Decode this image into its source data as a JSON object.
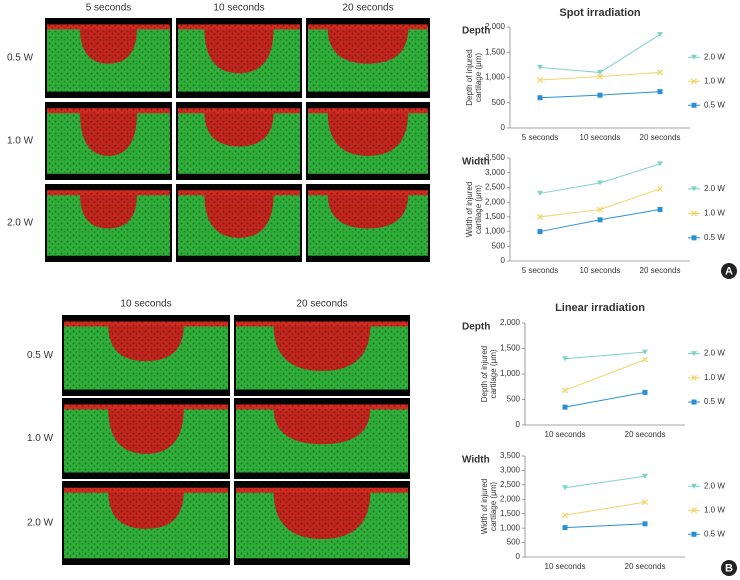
{
  "panels": [
    {
      "letter": "A",
      "title": "Spot irradiation",
      "columns": [
        "5 seconds",
        "10 seconds",
        "20 seconds"
      ],
      "rows": [
        "0.5 W",
        "1.0 W",
        "2.0 W"
      ]
    },
    {
      "letter": "B",
      "title": "Linear irradiation",
      "columns": [
        "10 seconds",
        "20 seconds"
      ],
      "rows": [
        "0.5 W",
        "1.0 W",
        "2.0 W"
      ]
    }
  ],
  "chart_data": [
    {
      "type": "line",
      "title": "Depth",
      "y_label": [
        "Depth of injured",
        "cartilage (μm)"
      ],
      "categories": [
        "5 seconds",
        "10 seconds",
        "20 seconds"
      ],
      "ylim": [
        0,
        2000
      ],
      "yticks": [
        0,
        500,
        {
          "value": 1000,
          "label": "1,000"
        },
        {
          "value": 1500,
          "label": "1,500"
        },
        {
          "value": 2000,
          "label": "2,000"
        }
      ],
      "series": [
        {
          "name": "2.0 W",
          "color": "#7fd3c6",
          "marker": "triangle-down",
          "values": [
            1200,
            1100,
            1850
          ]
        },
        {
          "name": "1.0 W",
          "color": "#f3d36a",
          "marker": "x",
          "values": [
            950,
            1020,
            1100
          ]
        },
        {
          "name": "0.5 W",
          "color": "#2b8fd6",
          "marker": "square",
          "values": [
            600,
            650,
            720
          ]
        }
      ]
    },
    {
      "type": "line",
      "title": "Width",
      "y_label": [
        "Width of injured",
        "cartilage (μm)"
      ],
      "categories": [
        "5 seconds",
        "10 seconds",
        "20 seconds"
      ],
      "ylim": [
        0,
        3500
      ],
      "yticks": [
        0,
        500,
        {
          "value": 1000,
          "label": "1,000"
        },
        {
          "value": 1500,
          "label": "1,500"
        },
        {
          "value": 2000,
          "label": "2,000"
        },
        {
          "value": 2500,
          "label": "2,500"
        },
        {
          "value": 3000,
          "label": "3,000"
        },
        {
          "value": 3500,
          "label": "3,500"
        }
      ],
      "series": [
        {
          "name": "2.0 W",
          "color": "#7fd3c6",
          "marker": "triangle-down",
          "values": [
            2300,
            2650,
            3300
          ]
        },
        {
          "name": "1.0 W",
          "color": "#f3d36a",
          "marker": "x",
          "values": [
            1500,
            1750,
            2450
          ]
        },
        {
          "name": "0.5 W",
          "color": "#2b8fd6",
          "marker": "square",
          "values": [
            1000,
            1400,
            1750
          ]
        }
      ]
    },
    {
      "type": "line",
      "title": "Depth",
      "y_label": [
        "Depth of injured",
        "cartilage (μm)"
      ],
      "categories": [
        "10 seconds",
        "20 seconds"
      ],
      "ylim": [
        0,
        2000
      ],
      "yticks": [
        0,
        500,
        {
          "value": 1000,
          "label": "1,000"
        },
        {
          "value": 1500,
          "label": "1,500"
        },
        {
          "value": 2000,
          "label": "2,000"
        }
      ],
      "series": [
        {
          "name": "2.0 W",
          "color": "#7fd3c6",
          "marker": "triangle-down",
          "values": [
            1300,
            1430
          ]
        },
        {
          "name": "1.0 W",
          "color": "#f3d36a",
          "marker": "x",
          "values": [
            680,
            1280
          ]
        },
        {
          "name": "0.5 W",
          "color": "#2b8fd6",
          "marker": "square",
          "values": [
            350,
            640
          ]
        }
      ]
    },
    {
      "type": "line",
      "title": "Width",
      "y_label": [
        "Width of injured",
        "cartilage (μm)"
      ],
      "categories": [
        "10 seconds",
        "20 seconds"
      ],
      "ylim": [
        0,
        3500
      ],
      "yticks": [
        0,
        500,
        {
          "value": 1000,
          "label": "1,000"
        },
        {
          "value": 1500,
          "label": "1,500"
        },
        {
          "value": 2000,
          "label": "2,000"
        },
        {
          "value": 2500,
          "label": "2,500"
        },
        {
          "value": 3000,
          "label": "3,000"
        },
        {
          "value": 3500,
          "label": "3,500"
        }
      ],
      "series": [
        {
          "name": "2.0 W",
          "color": "#7fd3c6",
          "marker": "triangle-down",
          "values": [
            2400,
            2800
          ]
        },
        {
          "name": "1.0 W",
          "color": "#f3d36a",
          "marker": "x",
          "values": [
            1450,
            1900
          ]
        },
        {
          "name": "0.5 W",
          "color": "#2b8fd6",
          "marker": "square",
          "values": [
            1020,
            1150
          ]
        }
      ]
    }
  ]
}
